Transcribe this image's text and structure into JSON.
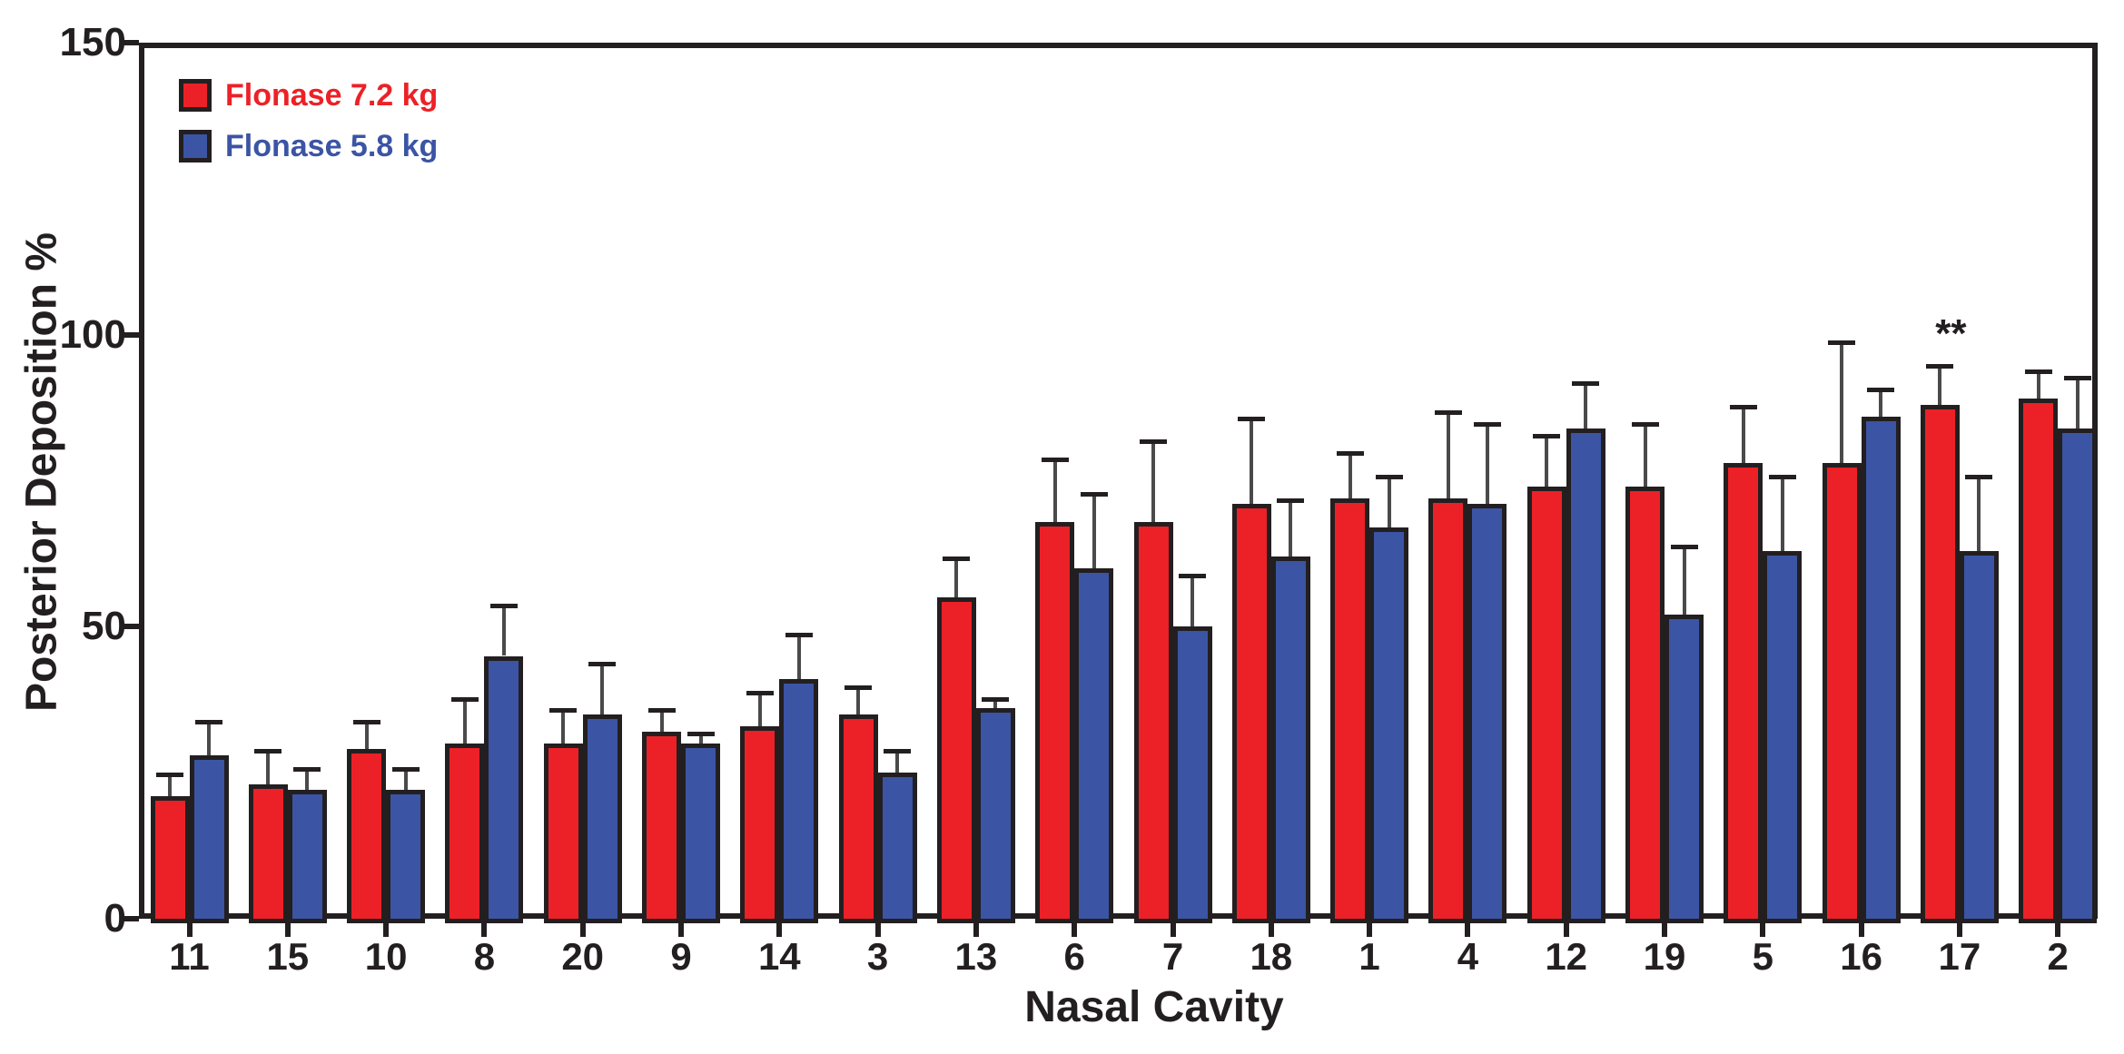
{
  "figure": {
    "background": "#ffffff",
    "axis_color": "#231F20"
  },
  "chart_data": {
    "type": "bar",
    "title": "",
    "xlabel": "Nasal Cavity",
    "ylabel": "Posterior Deposition %",
    "ylim": [
      0,
      150
    ],
    "yticks": [
      "0",
      "50",
      "100",
      "150"
    ],
    "grid": false,
    "frame": true,
    "legend_position": "top-left-inside",
    "error_bars": "upper, with caps",
    "categories": [
      "11",
      "15",
      "10",
      "8",
      "20",
      "9",
      "14",
      "3",
      "13",
      "6",
      "7",
      "18",
      "1",
      "4",
      "12",
      "19",
      "5",
      "16",
      "17",
      "2"
    ],
    "series": [
      {
        "name": "Flonase 7.2 kg",
        "color": "#EC2127",
        "values": [
          21,
          23,
          29,
          30,
          30,
          32,
          33,
          35,
          55,
          68,
          68,
          71,
          72,
          72,
          74,
          74,
          78,
          78,
          88,
          89
        ],
        "errors": [
          4,
          6,
          5,
          8,
          6,
          4,
          6,
          5,
          7,
          11,
          14,
          15,
          8,
          15,
          9,
          11,
          10,
          21,
          7,
          5
        ]
      },
      {
        "name": "Flonase 5.8 kg",
        "color": "#3B54A4",
        "values": [
          28,
          22,
          22,
          45,
          35,
          30,
          41,
          25,
          36,
          60,
          50,
          62,
          67,
          71,
          84,
          52,
          63,
          86,
          63,
          84
        ],
        "errors": [
          6,
          4,
          4,
          9,
          9,
          2,
          8,
          4,
          2,
          13,
          9,
          10,
          9,
          14,
          8,
          12,
          13,
          5,
          13,
          9
        ]
      }
    ],
    "annotations": [
      {
        "category": "17",
        "series_index": 0,
        "text": "**"
      }
    ]
  }
}
